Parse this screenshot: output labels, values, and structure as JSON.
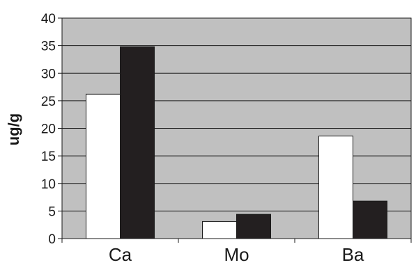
{
  "chart_data": {
    "type": "bar",
    "categories": [
      "Ca",
      "Mo",
      "Ba"
    ],
    "series": [
      {
        "values": [
          26.2,
          3.1,
          18.6
        ],
        "color": "#ffffff"
      },
      {
        "values": [
          34.8,
          4.4,
          6.8
        ],
        "color": "#231f20"
      }
    ],
    "title": "",
    "xlabel": "",
    "ylabel": "ug/g",
    "ylim": [
      0,
      40
    ],
    "yticks": [
      0,
      5,
      10,
      15,
      20,
      25,
      30,
      35,
      40
    ],
    "grid": true,
    "legend": "none",
    "plot_background": "#c0c0c0"
  }
}
